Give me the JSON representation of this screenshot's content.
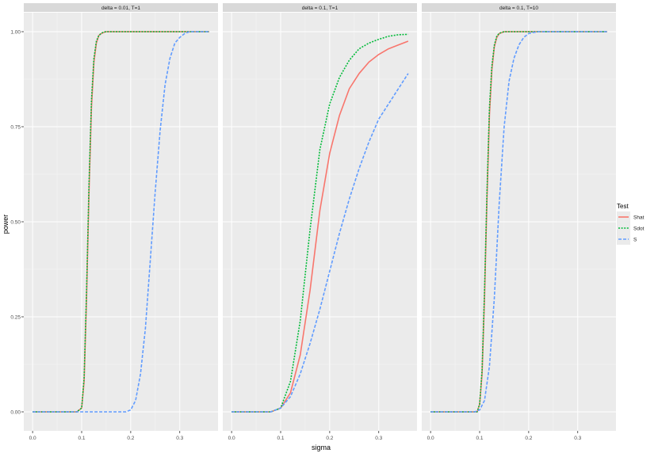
{
  "chart_data": {
    "type": "line",
    "xlabel": "sigma",
    "ylabel": "power",
    "xlim": [
      -0.018,
      0.378
    ],
    "ylim": [
      -0.05,
      1.05
    ],
    "xticks": [
      0.0,
      0.1,
      0.2,
      0.3
    ],
    "xtick_labels": [
      "0.0",
      "0.1",
      "0.2",
      "0.3"
    ],
    "yticks": [
      0.0,
      0.25,
      0.5,
      0.75,
      1.0
    ],
    "ytick_labels": [
      "0.00",
      "0.25",
      "0.50",
      "0.75",
      "1.00"
    ],
    "grid": true,
    "legend": {
      "title": "Test",
      "placement": "right",
      "entries": [
        {
          "name": "Shat",
          "color": "#F8766D",
          "dash": "solid"
        },
        {
          "name": "Sdot",
          "color": "#00BA38",
          "dash": "dotted"
        },
        {
          "name": "S",
          "color": "#619CFF",
          "dash": "dashed"
        }
      ]
    },
    "panels": [
      {
        "title": "delta = 0.01, T=1",
        "series": [
          {
            "name": "Shat",
            "x": [
              0.0,
              0.09,
              0.1,
              0.105,
              0.11,
              0.115,
              0.12,
              0.125,
              0.13,
              0.135,
              0.14,
              0.145,
              0.15,
              0.16,
              0.18,
              0.36
            ],
            "y": [
              0.0,
              0.0,
              0.01,
              0.08,
              0.3,
              0.58,
              0.8,
              0.92,
              0.97,
              0.99,
              0.995,
              0.998,
              1.0,
              1.0,
              1.0,
              1.0
            ]
          },
          {
            "name": "Sdot",
            "x": [
              0.0,
              0.09,
              0.1,
              0.105,
              0.11,
              0.115,
              0.12,
              0.125,
              0.13,
              0.135,
              0.14,
              0.145,
              0.15,
              0.16,
              0.18,
              0.36
            ],
            "y": [
              0.0,
              0.0,
              0.01,
              0.09,
              0.32,
              0.6,
              0.82,
              0.93,
              0.975,
              0.99,
              0.996,
              0.999,
              1.0,
              1.0,
              1.0,
              1.0
            ]
          },
          {
            "name": "S",
            "x": [
              0.0,
              0.19,
              0.2,
              0.21,
              0.22,
              0.23,
              0.24,
              0.25,
              0.26,
              0.27,
              0.28,
              0.29,
              0.3,
              0.31,
              0.32,
              0.34,
              0.36
            ],
            "y": [
              0.0,
              0.0,
              0.005,
              0.03,
              0.1,
              0.22,
              0.4,
              0.58,
              0.74,
              0.86,
              0.93,
              0.97,
              0.985,
              0.995,
              1.0,
              1.0,
              1.0
            ]
          }
        ]
      },
      {
        "title": "delta = 0.1, T=1",
        "series": [
          {
            "name": "Shat",
            "x": [
              0.0,
              0.08,
              0.1,
              0.12,
              0.14,
              0.16,
              0.18,
              0.2,
              0.22,
              0.24,
              0.26,
              0.28,
              0.3,
              0.32,
              0.34,
              0.36
            ],
            "y": [
              0.0,
              0.0,
              0.01,
              0.05,
              0.15,
              0.32,
              0.53,
              0.68,
              0.78,
              0.85,
              0.89,
              0.92,
              0.94,
              0.955,
              0.965,
              0.975
            ]
          },
          {
            "name": "Sdot",
            "x": [
              0.0,
              0.08,
              0.1,
              0.12,
              0.14,
              0.16,
              0.18,
              0.2,
              0.22,
              0.24,
              0.26,
              0.28,
              0.3,
              0.32,
              0.34,
              0.36
            ],
            "y": [
              0.0,
              0.0,
              0.01,
              0.08,
              0.24,
              0.48,
              0.69,
              0.81,
              0.88,
              0.925,
              0.955,
              0.97,
              0.98,
              0.988,
              0.992,
              0.993
            ]
          },
          {
            "name": "S",
            "x": [
              0.0,
              0.08,
              0.1,
              0.12,
              0.14,
              0.16,
              0.18,
              0.2,
              0.22,
              0.24,
              0.26,
              0.28,
              0.3,
              0.32,
              0.34,
              0.36
            ],
            "y": [
              0.0,
              0.0,
              0.01,
              0.04,
              0.1,
              0.18,
              0.27,
              0.37,
              0.47,
              0.56,
              0.64,
              0.71,
              0.77,
              0.81,
              0.85,
              0.89
            ]
          }
        ]
      },
      {
        "title": "delta = 0.1, T=10",
        "series": [
          {
            "name": "Shat",
            "x": [
              0.0,
              0.095,
              0.1,
              0.105,
              0.11,
              0.115,
              0.12,
              0.125,
              0.13,
              0.135,
              0.14,
              0.15,
              0.16,
              0.18,
              0.36
            ],
            "y": [
              0.0,
              0.0,
              0.02,
              0.1,
              0.3,
              0.56,
              0.78,
              0.9,
              0.96,
              0.985,
              0.995,
              1.0,
              1.0,
              1.0,
              1.0
            ]
          },
          {
            "name": "Sdot",
            "x": [
              0.0,
              0.095,
              0.1,
              0.105,
              0.11,
              0.115,
              0.12,
              0.125,
              0.13,
              0.135,
              0.14,
              0.15,
              0.16,
              0.18,
              0.36
            ],
            "y": [
              0.0,
              0.0,
              0.02,
              0.11,
              0.32,
              0.58,
              0.8,
              0.91,
              0.965,
              0.988,
              0.996,
              1.0,
              1.0,
              1.0,
              1.0
            ]
          },
          {
            "name": "S",
            "x": [
              0.0,
              0.09,
              0.1,
              0.11,
              0.12,
              0.13,
              0.14,
              0.15,
              0.16,
              0.17,
              0.18,
              0.19,
              0.2,
              0.21,
              0.22,
              0.24,
              0.36
            ],
            "y": [
              0.0,
              0.0,
              0.005,
              0.03,
              0.12,
              0.3,
              0.55,
              0.75,
              0.87,
              0.93,
              0.965,
              0.985,
              0.995,
              0.998,
              1.0,
              1.0,
              1.0
            ]
          }
        ]
      }
    ]
  }
}
